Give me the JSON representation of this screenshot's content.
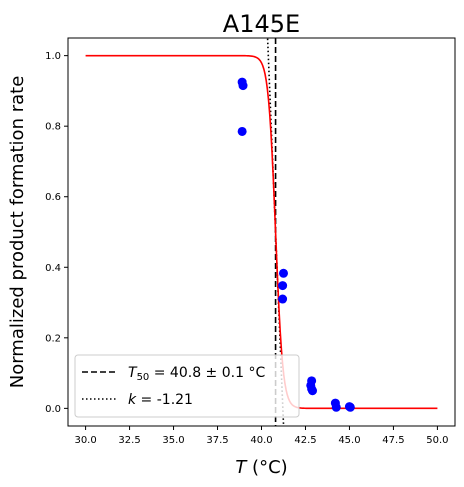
{
  "chart_data": {
    "type": "scatter",
    "title": "A145E",
    "xlabel_var": "T",
    "xlabel_unit": "(°C)",
    "ylabel": "Normalized product formation rate",
    "xlim": [
      29.0,
      51.0
    ],
    "ylim": [
      -0.05,
      1.05
    ],
    "x_ticks": [
      30.0,
      32.5,
      35.0,
      37.5,
      40.0,
      42.5,
      45.0,
      47.5,
      50.0
    ],
    "x_tick_labels": [
      "30.0",
      "32.5",
      "35.0",
      "37.5",
      "40.0",
      "42.5",
      "45.0",
      "47.5",
      "50.0"
    ],
    "y_ticks": [
      0.0,
      0.2,
      0.4,
      0.6,
      0.8,
      1.0
    ],
    "y_tick_labels": [
      "0.0",
      "0.2",
      "0.4",
      "0.6",
      "0.8",
      "1.0"
    ],
    "grid": false,
    "legend_position": "bottom-left",
    "series": [
      {
        "kind": "points",
        "color": "#0000ff",
        "points": [
          {
            "x": 38.9,
            "y": 0.925
          },
          {
            "x": 38.95,
            "y": 0.915
          },
          {
            "x": 38.9,
            "y": 0.785
          },
          {
            "x": 41.25,
            "y": 0.383
          },
          {
            "x": 41.2,
            "y": 0.348
          },
          {
            "x": 41.2,
            "y": 0.31
          },
          {
            "x": 42.85,
            "y": 0.078
          },
          {
            "x": 42.8,
            "y": 0.065
          },
          {
            "x": 42.85,
            "y": 0.055
          },
          {
            "x": 42.9,
            "y": 0.05
          },
          {
            "x": 44.2,
            "y": 0.015
          },
          {
            "x": 44.25,
            "y": 0.003
          },
          {
            "x": 45.0,
            "y": 0.005
          },
          {
            "x": 45.05,
            "y": 0.003
          }
        ]
      },
      {
        "kind": "sigmoid_fit",
        "color": "#ff0000",
        "t50": 40.8,
        "x_start": 30.0,
        "x_end": 50.0
      },
      {
        "kind": "t50_line",
        "color": "#000000",
        "x": 40.8
      },
      {
        "kind": "slope_line",
        "color": "#000000",
        "slope": -1.21
      }
    ],
    "legend": [
      {
        "var": "T",
        "sub": "50",
        "text": " = 40.8 ± 0.1 °C",
        "style": "dashed"
      },
      {
        "var": "k",
        "text": " = -1.21",
        "style": "dotted"
      }
    ]
  }
}
